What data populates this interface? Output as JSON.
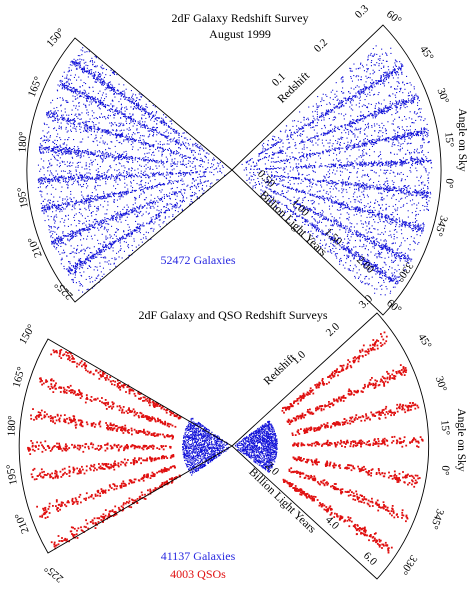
{
  "colors": {
    "galaxy": "#1010d8",
    "qso": "#e01010",
    "galaxy_count_text": "#2a2ae0",
    "qso_count_text": "#e01010",
    "frame": "#000000"
  },
  "panels": [
    {
      "id": "top",
      "title_line1": "2dF Galaxy Redshift Survey",
      "title_line2": "August 1999",
      "redshift_label": "Redshift",
      "redshift_ticks": [
        "0.1",
        "0.2",
        "0.3"
      ],
      "distance_label": "Billion Light Years",
      "distance_ticks": [
        "0.50",
        "1.00",
        "1.50",
        "2.00"
      ],
      "angle_label": "Angle on Sky",
      "left_angles": [
        "150°",
        "165°",
        "180°",
        "195°",
        "210°",
        "225°"
      ],
      "right_angles": [
        "60°",
        "45°",
        "30°",
        "15°",
        "0°",
        "345°",
        "330°"
      ],
      "count_galaxies": "52472 Galaxies"
    },
    {
      "id": "bottom",
      "title_line1": "2dF Galaxy and QSO Redshift Surveys",
      "redshift_label": "Redshift",
      "redshift_ticks": [
        "1.0",
        "2.0",
        "3.0"
      ],
      "distance_label": "Billion Light Years",
      "distance_ticks": [
        "2.0",
        "4.0",
        "6.0"
      ],
      "angle_label": "Angle on Sky",
      "left_angles": [
        "150°",
        "165°",
        "180°",
        "195°",
        "210°",
        "225°"
      ],
      "right_angles": [
        "60°",
        "45°",
        "30°",
        "15°",
        "0°",
        "345°",
        "330°"
      ],
      "count_galaxies": "41137 Galaxies",
      "count_qsos": "4003 QSOs"
    }
  ]
}
